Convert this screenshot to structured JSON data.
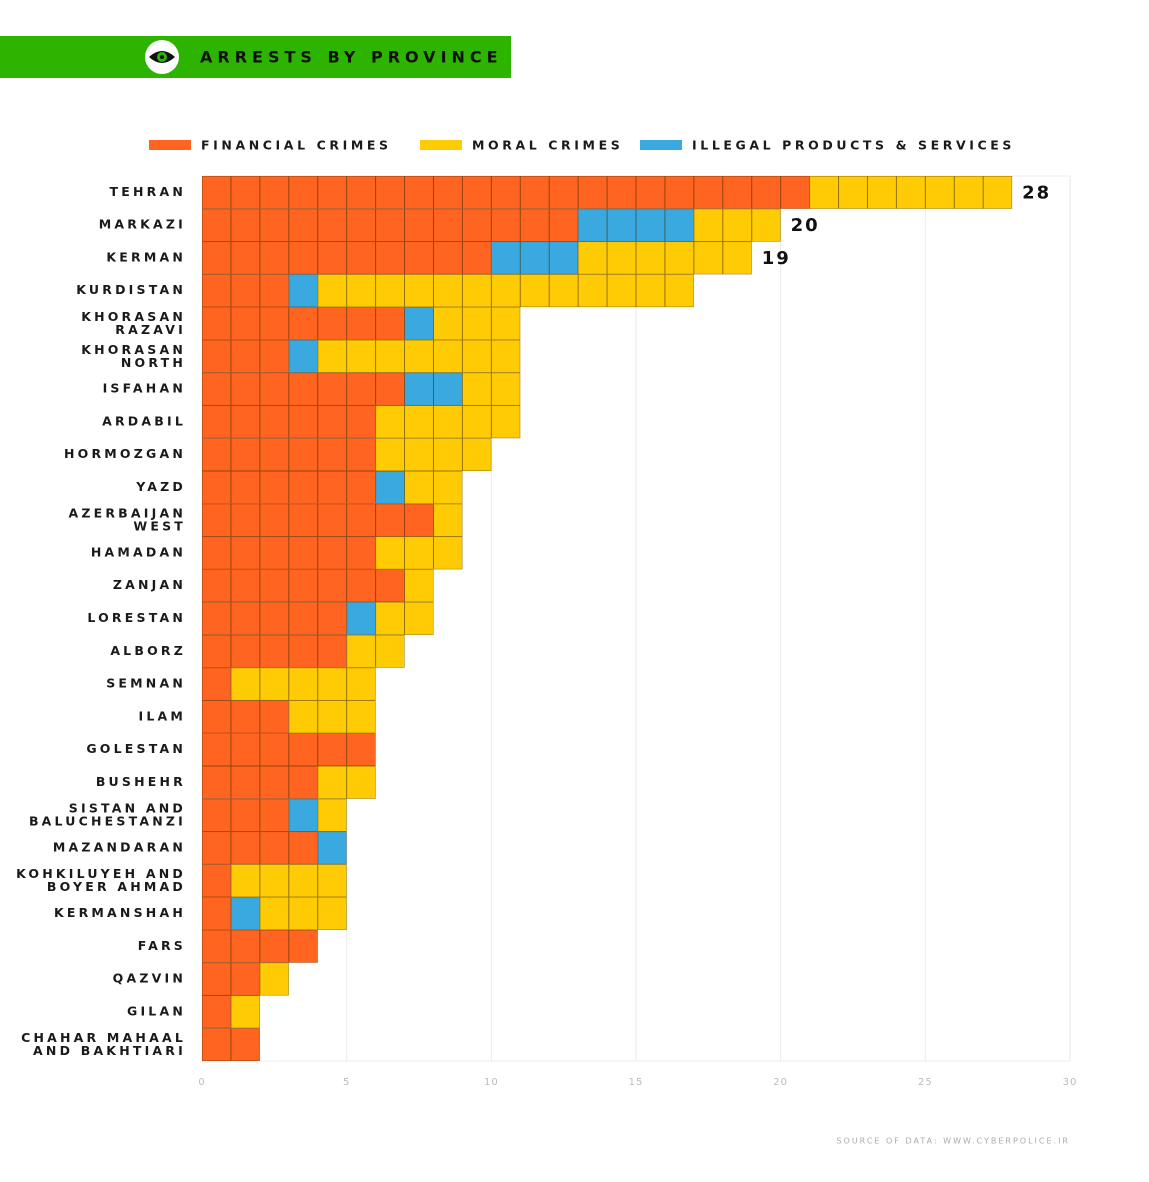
{
  "chart_data": {
    "type": "bar",
    "orientation": "horizontal",
    "stacked": true,
    "title": "ARRESTS BY PROVINCE",
    "source": "SOURCE OF DATA: WWW.CYBERPOLICE.IR",
    "categories": [
      "TEHRAN",
      "MARKAZI",
      "KERMAN",
      "KURDISTAN",
      "KHORASAN\nRAZAVI",
      "KHORASAN\nNORTH",
      "ISFAHAN",
      "ARDABIL",
      "HORMOZGAN",
      "YAZD",
      "AZERBAIJAN\nWEST",
      "HAMADAN",
      "ZANJAN",
      "LORESTAN",
      "ALBORZ",
      "SEMNAN",
      "ILAM",
      "GOLESTAN",
      "BUSHEHR",
      "SISTAN AND\nBALUCHESTANZI",
      "MAZANDARAN",
      "KOHKILUYEH AND\nBOYER AHMAD",
      "KERMANSHAH",
      "FARS",
      "QAZVIN",
      "GILAN",
      "CHAHAR MAHAAL\nAND BAKHTIARI"
    ],
    "series": [
      {
        "name": "FINANCIAL CRIMES",
        "color": "#ff6420",
        "values": [
          21,
          13,
          10,
          3,
          7,
          3,
          7,
          6,
          6,
          6,
          8,
          6,
          7,
          5,
          5,
          1,
          3,
          6,
          4,
          3,
          4,
          1,
          1,
          4,
          2,
          1,
          2
        ]
      },
      {
        "name": "MORAL CRIMES",
        "color": "#ffcb05",
        "values": [
          7,
          3,
          6,
          13,
          3,
          7,
          2,
          5,
          4,
          2,
          1,
          3,
          1,
          2,
          2,
          5,
          3,
          0,
          2,
          1,
          0,
          4,
          3,
          0,
          1,
          1,
          0
        ]
      },
      {
        "name": "ILLEGAL PRODUCTS & SERVICES",
        "color": "#3aa9df",
        "values": [
          0,
          4,
          3,
          1,
          1,
          1,
          2,
          0,
          0,
          1,
          0,
          0,
          0,
          1,
          0,
          0,
          0,
          0,
          0,
          1,
          1,
          0,
          1,
          0,
          0,
          0,
          0
        ]
      }
    ],
    "totals": [
      28,
      20,
      19,
      null,
      null,
      null,
      null,
      null,
      null,
      null,
      null,
      null,
      null,
      null,
      null,
      null,
      null,
      null,
      null,
      null,
      null,
      null,
      null,
      null,
      null,
      null,
      null
    ],
    "xlim": [
      0,
      30
    ],
    "xticks": [
      0,
      5,
      10,
      15,
      20,
      25,
      30
    ],
    "grid": true
  }
}
